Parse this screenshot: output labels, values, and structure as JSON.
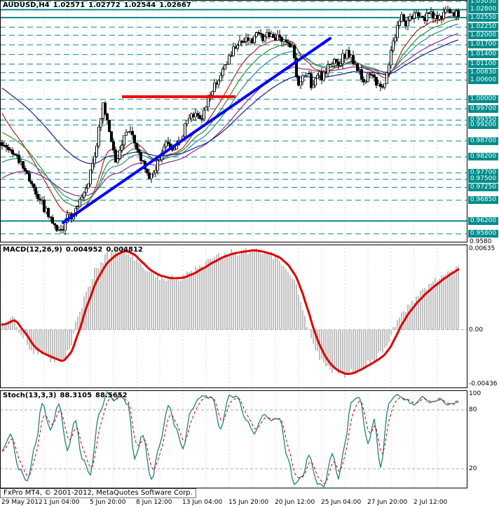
{
  "chart_data": [
    {
      "type": "candlestick",
      "pane": "main",
      "symbol_period": "AUDUSD,H4",
      "ohlc_title": {
        "open": "1.02571",
        "high": "1.02772",
        "low": "1.02544",
        "close": "1.02667"
      },
      "ylim": [
        0.9553,
        1.031
      ],
      "bars": 218,
      "axis_min_label": "0.9580",
      "colors": {
        "up": "#FFFFFF",
        "down": "#000000",
        "outline": "#000000",
        "level": "#008B8B"
      },
      "levels": [
        {
          "label": "1.03050",
          "value": 1.0305,
          "style": "dashed"
        },
        {
          "label": "1.02800",
          "value": 1.028,
          "style": "solid"
        },
        {
          "label": "1.02550",
          "value": 1.0255,
          "style": "solid"
        },
        {
          "label": "1.02250",
          "value": 1.0225,
          "style": "dashed"
        },
        {
          "label": "1.02000",
          "value": 1.02,
          "style": "dashed"
        },
        {
          "label": "1.01700",
          "value": 1.017,
          "style": "dashed"
        },
        {
          "label": "1.01400",
          "value": 1.014,
          "style": "dashed"
        },
        {
          "label": "1.01100",
          "value": 1.011,
          "style": "dashed"
        },
        {
          "label": "1.00830",
          "value": 1.0083,
          "style": "dashed"
        },
        {
          "label": "1.00600",
          "value": 1.006,
          "style": "dashed"
        },
        {
          "label": "1.00000",
          "value": 1.0,
          "style": "dashed"
        },
        {
          "label": "0.99700",
          "value": 0.997,
          "style": "dashed"
        },
        {
          "label": "0.99350",
          "value": 0.9935,
          "style": "dashed"
        },
        {
          "label": "0.99200",
          "value": 0.992,
          "style": "dashed"
        },
        {
          "label": "0.98700",
          "value": 0.987,
          "style": "dashed"
        },
        {
          "label": "0.98200",
          "value": 0.982,
          "style": "dashed"
        },
        {
          "label": "0.97700",
          "value": 0.977,
          "style": "dashed"
        },
        {
          "label": "0.97500",
          "value": 0.975,
          "style": "dashed"
        },
        {
          "label": "0.97250",
          "value": 0.9725,
          "style": "dashed"
        },
        {
          "label": "0.96850",
          "value": 0.9685,
          "style": "dashed"
        },
        {
          "label": "0.96200",
          "value": 0.962,
          "style": "solid"
        },
        {
          "label": "0.95800",
          "value": 0.958,
          "style": "dashed"
        }
      ],
      "close_keyframes": [
        [
          0,
          0.9865
        ],
        [
          3,
          0.984
        ],
        [
          6,
          0.9835
        ],
        [
          9,
          0.98
        ],
        [
          12,
          0.9765
        ],
        [
          15,
          0.972
        ],
        [
          18,
          0.969
        ],
        [
          21,
          0.965
        ],
        [
          24,
          0.9615
        ],
        [
          27,
          0.959
        ],
        [
          29,
          0.96
        ],
        [
          31,
          0.965
        ],
        [
          33,
          0.9615
        ],
        [
          35,
          0.966
        ],
        [
          38,
          0.97
        ],
        [
          41,
          0.9745
        ],
        [
          44,
          0.983
        ],
        [
          47,
          0.993
        ],
        [
          48,
          0.9985
        ],
        [
          50,
          0.994
        ],
        [
          52,
          0.986
        ],
        [
          54,
          0.98
        ],
        [
          56,
          0.984
        ],
        [
          58,
          0.988
        ],
        [
          60,
          0.991
        ],
        [
          62,
          0.989
        ],
        [
          64,
          0.9855
        ],
        [
          66,
          0.982
        ],
        [
          68,
          0.979
        ],
        [
          70,
          0.976
        ],
        [
          72,
          0.977
        ],
        [
          74,
          0.98
        ],
        [
          76,
          0.984
        ],
        [
          78,
          0.9865
        ],
        [
          80,
          0.9845
        ],
        [
          82,
          0.9835
        ],
        [
          84,
          0.9865
        ],
        [
          86,
          0.9895
        ],
        [
          88,
          0.993
        ],
        [
          90,
          0.9955
        ],
        [
          92,
          0.9945
        ],
        [
          94,
          0.9935
        ],
        [
          96,
          0.9965
        ],
        [
          98,
          1.0
        ],
        [
          100,
          1.003
        ],
        [
          102,
          1.0055
        ],
        [
          104,
          1.0075
        ],
        [
          106,
          1.01
        ],
        [
          108,
          1.013
        ],
        [
          110,
          1.0155
        ],
        [
          112,
          1.0175
        ],
        [
          114,
          1.0185
        ],
        [
          116,
          1.0195
        ],
        [
          118,
          1.018
        ],
        [
          120,
          1.0195
        ],
        [
          122,
          1.0205
        ],
        [
          124,
          1.0185
        ],
        [
          126,
          1.02
        ],
        [
          128,
          1.0195
        ],
        [
          130,
          1.0185
        ],
        [
          132,
          1.0195
        ],
        [
          134,
          1.018
        ],
        [
          136,
          1.0175
        ],
        [
          138,
          1.0165
        ],
        [
          139,
          1.012
        ],
        [
          141,
          1.0045
        ],
        [
          143,
          1.007
        ],
        [
          145,
          1.009
        ],
        [
          147,
          1.0045
        ],
        [
          149,
          1.006
        ],
        [
          151,
          1.0075
        ],
        [
          152,
          1.006
        ],
        [
          154,
          1.0085
        ],
        [
          156,
          1.011
        ],
        [
          158,
          1.0135
        ],
        [
          160,
          1.0115
        ],
        [
          162,
          1.013
        ],
        [
          164,
          1.0145
        ],
        [
          166,
          1.013
        ],
        [
          168,
          1.0105
        ],
        [
          170,
          1.0085
        ],
        [
          172,
          1.006
        ],
        [
          174,
          1.007
        ],
        [
          176,
          1.0085
        ],
        [
          178,
          1.0055
        ],
        [
          180,
          1.0035
        ],
        [
          182,
          1.006
        ],
        [
          184,
          1.011
        ],
        [
          186,
          1.0175
        ],
        [
          188,
          1.023
        ],
        [
          190,
          1.0255
        ],
        [
          192,
          1.024
        ],
        [
          194,
          1.025
        ],
        [
          196,
          1.0265
        ],
        [
          198,
          1.0255
        ],
        [
          200,
          1.0248
        ],
        [
          202,
          1.026
        ],
        [
          204,
          1.027
        ],
        [
          206,
          1.0258
        ],
        [
          208,
          1.0252
        ],
        [
          210,
          1.0265
        ],
        [
          212,
          1.0275
        ],
        [
          214,
          1.0262
        ],
        [
          216,
          1.027
        ],
        [
          217,
          1.0267
        ]
      ],
      "moving_averages": [
        {
          "name": "ma-red",
          "color": "#B22222",
          "period": 16,
          "seed": 0.997
        },
        {
          "name": "ma-green",
          "color": "#2F8B2F",
          "period": 24,
          "seed": 0.99
        },
        {
          "name": "ma-teal",
          "color": "#2E8B8B",
          "period": 34,
          "seed": 0.98
        },
        {
          "name": "ma-magenta",
          "color": "#8B2F8B",
          "period": 55,
          "seed": 0.975
        },
        {
          "name": "ma-navy",
          "color": "#1C1C8C",
          "period": 72,
          "seed": 1.004
        }
      ],
      "trendline": {
        "color": "#0000FF",
        "width": 4,
        "from": {
          "bar": 29,
          "price": 0.9615
        },
        "to": {
          "bar": 156,
          "price": 1.019
        }
      },
      "flat_line": {
        "color": "#FF0000",
        "width": 4,
        "price": 1.0008,
        "from_bar": 57,
        "to_bar": 111
      }
    },
    {
      "type": "histogram+line",
      "pane": "macd",
      "title": "MACD(12,26,9)",
      "values": [
        "0.004952",
        "0.004812"
      ],
      "ylim": [
        -0.0046,
        0.0067
      ],
      "signal_period": 6,
      "colors": {
        "histogram": "#C0C0C0",
        "signal": "#DD0000",
        "zero_line": "#ADADAD"
      },
      "scale_labels": [
        {
          "label": "0.00635",
          "value": 0.00635
        },
        {
          "label": "0.00",
          "value": 0
        },
        {
          "label": "-0.00436",
          "value": -0.00436
        }
      ],
      "keyframes": [
        [
          0,
          0.0004
        ],
        [
          5,
          0.0009
        ],
        [
          10,
          -0.0006
        ],
        [
          15,
          -0.0018
        ],
        [
          20,
          -0.0021
        ],
        [
          25,
          -0.0024
        ],
        [
          28,
          -0.0026
        ],
        [
          32,
          -0.0015
        ],
        [
          36,
          0.0008
        ],
        [
          40,
          0.003
        ],
        [
          45,
          0.0048
        ],
        [
          50,
          0.0058
        ],
        [
          55,
          0.0062
        ],
        [
          58,
          0.0063
        ],
        [
          62,
          0.0058
        ],
        [
          66,
          0.005
        ],
        [
          70,
          0.0044
        ],
        [
          75,
          0.0041
        ],
        [
          80,
          0.004
        ],
        [
          85,
          0.0041
        ],
        [
          90,
          0.0045
        ],
        [
          95,
          0.005
        ],
        [
          100,
          0.0055
        ],
        [
          105,
          0.0059
        ],
        [
          110,
          0.0061
        ],
        [
          115,
          0.0062
        ],
        [
          119,
          0.0063
        ],
        [
          123,
          0.0061
        ],
        [
          127,
          0.0059
        ],
        [
          131,
          0.0056
        ],
        [
          135,
          0.0049
        ],
        [
          139,
          0.0038
        ],
        [
          142,
          0.0022
        ],
        [
          145,
          0.0005
        ],
        [
          148,
          -0.0012
        ],
        [
          151,
          -0.0022
        ],
        [
          154,
          -0.0029
        ],
        [
          157,
          -0.0033
        ],
        [
          160,
          -0.0035
        ],
        [
          163,
          -0.0036
        ],
        [
          166,
          -0.0034
        ],
        [
          170,
          -0.003
        ],
        [
          174,
          -0.0026
        ],
        [
          178,
          -0.0022
        ],
        [
          181,
          -0.0018
        ],
        [
          184,
          -0.001
        ],
        [
          187,
          0.0002
        ],
        [
          190,
          0.0012
        ],
        [
          194,
          0.002
        ],
        [
          198,
          0.0027
        ],
        [
          202,
          0.0033
        ],
        [
          206,
          0.0038
        ],
        [
          210,
          0.0043
        ],
        [
          214,
          0.0047
        ],
        [
          217,
          0.005
        ]
      ]
    },
    {
      "type": "line",
      "pane": "stochastic",
      "title": "Stoch(13,3,3)",
      "values": [
        "88.3105",
        "88.5652"
      ],
      "ylim": [
        0,
        100
      ],
      "level_lines": [
        80,
        20
      ],
      "signal_period": 4,
      "colors": {
        "main": "#1F8080",
        "signal": "#CC0000"
      },
      "scale_labels": [
        {
          "label": "100",
          "value": 100
        },
        {
          "label": "80",
          "value": 80
        },
        {
          "label": "20",
          "value": 20
        }
      ],
      "keyframes": [
        [
          0,
          38
        ],
        [
          4,
          55
        ],
        [
          8,
          20
        ],
        [
          12,
          8
        ],
        [
          16,
          45
        ],
        [
          19,
          87
        ],
        [
          23,
          60
        ],
        [
          27,
          85
        ],
        [
          31,
          40
        ],
        [
          35,
          70
        ],
        [
          38,
          30
        ],
        [
          42,
          15
        ],
        [
          46,
          75
        ],
        [
          50,
          97
        ],
        [
          53,
          90
        ],
        [
          56,
          96
        ],
        [
          60,
          85
        ],
        [
          63,
          30
        ],
        [
          67,
          55
        ],
        [
          71,
          8
        ],
        [
          75,
          45
        ],
        [
          79,
          85
        ],
        [
          83,
          60
        ],
        [
          86,
          40
        ],
        [
          90,
          80
        ],
        [
          95,
          95
        ],
        [
          100,
          92
        ],
        [
          104,
          60
        ],
        [
          108,
          95
        ],
        [
          112,
          93
        ],
        [
          116,
          70
        ],
        [
          120,
          55
        ],
        [
          124,
          75
        ],
        [
          128,
          70
        ],
        [
          132,
          72
        ],
        [
          136,
          30
        ],
        [
          139,
          5
        ],
        [
          143,
          12
        ],
        [
          146,
          35
        ],
        [
          150,
          5
        ],
        [
          153,
          3
        ],
        [
          157,
          35
        ],
        [
          160,
          10
        ],
        [
          163,
          45
        ],
        [
          166,
          88
        ],
        [
          170,
          92
        ],
        [
          174,
          45
        ],
        [
          177,
          70
        ],
        [
          180,
          20
        ],
        [
          184,
          88
        ],
        [
          188,
          95
        ],
        [
          192,
          90
        ],
        [
          196,
          85
        ],
        [
          200,
          93
        ],
        [
          204,
          87
        ],
        [
          208,
          91
        ],
        [
          212,
          85
        ],
        [
          217,
          88
        ]
      ]
    }
  ],
  "time_axis": {
    "ticks": [
      {
        "label": "29 May 2012",
        "bar": 0
      },
      {
        "label": "1 Jun 04:00",
        "bar": 20
      },
      {
        "label": "5 Jun 20:00",
        "bar": 42
      },
      {
        "label": "8 Jun 12:00",
        "bar": 64
      },
      {
        "label": "13 Jun 04:00",
        "bar": 86
      },
      {
        "label": "15 Jun 20:00",
        "bar": 108
      },
      {
        "label": "20 Jun 12:00",
        "bar": 130
      },
      {
        "label": "25 Jun 04:00",
        "bar": 152
      },
      {
        "label": "27 Jun 20:00",
        "bar": 174
      },
      {
        "label": "2 Jul 12:00",
        "bar": 196
      }
    ]
  },
  "footer": {
    "copyright": "FxPro MT4, © 2001-2012, MetaQuotes Software Corp."
  }
}
